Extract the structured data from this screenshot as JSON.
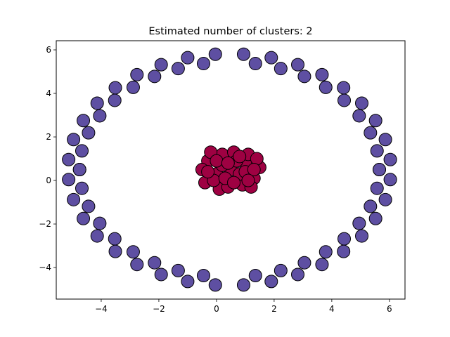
{
  "chart_data": {
    "type": "scatter",
    "title": "Estimated number of clusters: 2",
    "xlabel": "",
    "ylabel": "",
    "xlim": [
      -5.56,
      6.54
    ],
    "ylim": [
      -5.45,
      6.42
    ],
    "x_ticks": [
      -4,
      -2,
      0,
      2,
      4,
      6
    ],
    "x_tick_labels": [
      "−4",
      "−2",
      "0",
      "2",
      "4",
      "6"
    ],
    "y_ticks": [
      -4,
      -2,
      0,
      2,
      4,
      6
    ],
    "y_tick_labels": [
      "−4",
      "−2",
      "0",
      "2",
      "4",
      "6"
    ],
    "grid": false,
    "marker_edge_color": "#000000",
    "series": [
      {
        "color": "#5e4fa2",
        "x": [
          5.65,
          6.03,
          5.57,
          5.86,
          5.34,
          5.52,
          4.95,
          5.04,
          4.43,
          4.41,
          3.79,
          3.66,
          3.05,
          2.82,
          2.23,
          1.9,
          1.35,
          0.94,
          -4.75,
          -5.13,
          -4.67,
          -4.96,
          -4.44,
          -4.62,
          -4.05,
          -4.14,
          -3.53,
          -3.51,
          -2.89,
          -2.76,
          -2.15,
          -1.92,
          -1.33,
          -1.0,
          -0.45,
          -0.04,
          -4.75,
          -5.13,
          -4.67,
          -4.96,
          -4.44,
          -4.62,
          -4.05,
          -4.14,
          -3.53,
          -3.51,
          -2.89,
          -2.76,
          -2.15,
          -1.92,
          -1.33,
          -1.0,
          -0.45,
          -0.04,
          5.65,
          6.03,
          5.57,
          5.86,
          5.34,
          5.52,
          4.95,
          5.04,
          4.43,
          4.41,
          3.79,
          3.66,
          3.05,
          2.82,
          2.23,
          1.9,
          1.35,
          0.94
        ],
        "y": [
          0.5,
          0.96,
          1.36,
          1.88,
          2.19,
          2.75,
          2.97,
          3.55,
          3.68,
          4.26,
          4.28,
          4.86,
          4.78,
          5.32,
          5.14,
          5.64,
          5.37,
          5.8,
          0.5,
          0.96,
          1.36,
          1.88,
          2.19,
          2.75,
          2.97,
          3.55,
          3.68,
          4.26,
          4.28,
          4.86,
          4.78,
          5.32,
          5.14,
          5.64,
          5.37,
          5.8,
          0.5,
          0.04,
          -0.36,
          -0.88,
          -1.19,
          -1.75,
          -1.97,
          -2.55,
          -2.68,
          -3.26,
          -3.28,
          -3.86,
          -3.78,
          -4.32,
          -4.14,
          -4.64,
          -4.37,
          -4.8,
          0.5,
          0.04,
          -0.36,
          -0.88,
          -1.19,
          -1.75,
          -1.97,
          -2.55,
          -2.68,
          -3.26,
          -3.28,
          -3.86,
          -3.78,
          -4.32,
          -4.14,
          -4.64,
          -4.37,
          -4.8
        ]
      },
      {
        "color": "#9e0142",
        "x": [
          0.5,
          0,
          1,
          -0.3,
          1.3,
          0.2,
          0.9,
          -0.4,
          1.5,
          0.6,
          0.1,
          1.1,
          -0.5,
          0.4,
          1.4,
          -0.2,
          0.8,
          0.2,
          1.2,
          -0.1,
          0.7,
          0.3,
          1.0,
          0.0,
          0.6,
          1.3,
          -0.3,
          0.8,
          0.4,
          1.1
        ],
        "y": [
          0.5,
          0.3,
          0.8,
          0.9,
          0.1,
          1.2,
          -0.2,
          -0.1,
          0.6,
          1.3,
          -0.4,
          1.2,
          0.5,
          -0.3,
          1.0,
          1.3,
          0.3,
          0.7,
          -0.3,
          0.0,
          0.9,
          0.1,
          0.4,
          0.9,
          -0.1,
          0.5,
          0.4,
          1.1,
          0.8,
          0.0
        ]
      }
    ]
  }
}
